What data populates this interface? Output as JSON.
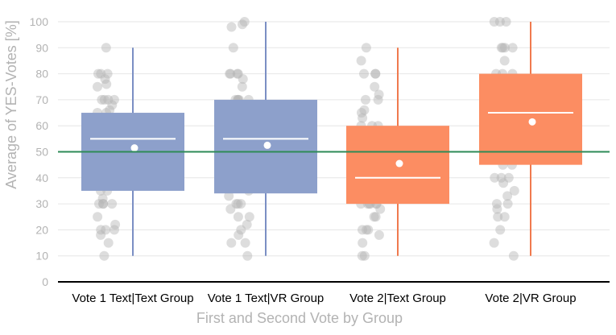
{
  "chart_data": {
    "type": "box",
    "xlabel": "First and Second Vote by Group",
    "ylabel": "Average of YES-Votes [%]",
    "ylim": [
      0,
      100
    ],
    "yticks": [
      0,
      10,
      20,
      30,
      40,
      50,
      60,
      70,
      80,
      90,
      100
    ],
    "grid": true,
    "reference_line": {
      "y": 50,
      "color": "#2e8b57"
    },
    "colors": {
      "text_group": "#8da0cb",
      "text_whisker": "#7b8fc4",
      "vr_group": "#fc8d62",
      "vr_whisker": "#f07a4e",
      "jitter_point": "#b4b4b4",
      "median_line": "#ffffff",
      "mean_dot": "#ffffff",
      "grid": "#e6e6e6",
      "axis": "#000000"
    },
    "categories": [
      {
        "label": "Vote 1 Text|Text Group",
        "color_key": "text",
        "q1": 35,
        "median": 55,
        "q3": 65,
        "whisker_low": 10,
        "whisker_high": 90,
        "mean": 51.5,
        "points": [
          90,
          80,
          80,
          80,
          78,
          76,
          75,
          70,
          70,
          70,
          70,
          68,
          66,
          65,
          65,
          62,
          60,
          60,
          60,
          60,
          60,
          60,
          58,
          57,
          55,
          55,
          50,
          50,
          45,
          42,
          40,
          40,
          40,
          40,
          40,
          35,
          35,
          32,
          30,
          30,
          30,
          30,
          25,
          22,
          20,
          20,
          20,
          18,
          15,
          10
        ]
      },
      {
        "label": "Vote 1 Text|VR Group",
        "color_key": "text",
        "q1": 34,
        "median": 55,
        "q3": 70,
        "whisker_low": 10,
        "whisker_high": 100,
        "mean": 52.5,
        "points": [
          100,
          99,
          98,
          90,
          80,
          80,
          80,
          80,
          78,
          75,
          70,
          70,
          70,
          70,
          70,
          68,
          66,
          65,
          65,
          62,
          60,
          60,
          60,
          60,
          60,
          58,
          55,
          55,
          55,
          50,
          50,
          50,
          48,
          45,
          40,
          40,
          40,
          40,
          38,
          35,
          33,
          30,
          30,
          30,
          28,
          25,
          25,
          22,
          20,
          18,
          15,
          15,
          10
        ]
      },
      {
        "label": "Vote 2|Text Group",
        "color_key": "vr",
        "q1": 30,
        "median": 40,
        "q3": 60,
        "whisker_low": 10,
        "whisker_high": 90,
        "mean": 45.5,
        "points": [
          90,
          85,
          80,
          80,
          80,
          75,
          72,
          70,
          70,
          66,
          65,
          63,
          60,
          60,
          60,
          58,
          55,
          55,
          50,
          50,
          50,
          48,
          45,
          45,
          40,
          40,
          40,
          40,
          40,
          40,
          38,
          35,
          35,
          33,
          30,
          30,
          30,
          30,
          30,
          30,
          28,
          25,
          25,
          20,
          20,
          20,
          18,
          15,
          10,
          10
        ]
      },
      {
        "label": "Vote 2|VR Group",
        "color_key": "vr",
        "q1": 45,
        "median": 65,
        "q3": 80,
        "whisker_low": 10,
        "whisker_high": 100,
        "mean": 61.5,
        "points": [
          100,
          100,
          100,
          90,
          90,
          90,
          90,
          85,
          80,
          80,
          80,
          78,
          75,
          75,
          75,
          70,
          70,
          70,
          70,
          70,
          68,
          65,
          65,
          65,
          60,
          60,
          60,
          60,
          58,
          55,
          55,
          55,
          50,
          50,
          50,
          48,
          45,
          45,
          40,
          40,
          40,
          38,
          35,
          33,
          30,
          30,
          28,
          25,
          25,
          20,
          15,
          10
        ]
      }
    ]
  }
}
